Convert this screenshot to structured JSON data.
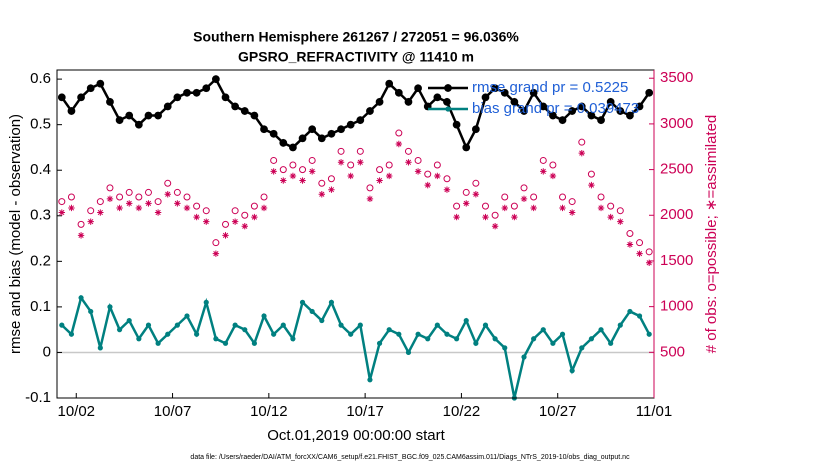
{
  "chart_data": {
    "type": "line",
    "title": "Southern Hemisphere 261267 / 272051 = 96.036%",
    "subtitle": "GPSRO_REFRACTIVITY @ 11410 m",
    "xlabel": "Oct.01,2019 00:00:00 start",
    "ylabel": "rmse and bias (model - observation)",
    "y2label": "# of obs: o=possible; ∗=assimilated",
    "footer": "data file: /Users/raeder/DAI/ATM_forcXX/CAM6_setup/f.e21.FHIST_BGC.f09_025.CAM6assim.011/Diags_NTrS_2019-10/obs_diag_output.nc",
    "x": [
      0.25,
      0.75,
      1.25,
      1.75,
      2.25,
      2.75,
      3.25,
      3.75,
      4.25,
      4.75,
      5.25,
      5.75,
      6.25,
      6.75,
      7.25,
      7.75,
      8.25,
      8.75,
      9.25,
      9.75,
      10.25,
      10.75,
      11.25,
      11.75,
      12.25,
      12.75,
      13.25,
      13.75,
      14.25,
      14.75,
      15.25,
      15.75,
      16.25,
      16.75,
      17.25,
      17.75,
      18.25,
      18.75,
      19.25,
      19.75,
      20.25,
      20.75,
      21.25,
      21.75,
      22.25,
      22.75,
      23.25,
      23.75,
      24.25,
      24.75,
      25.25,
      25.75,
      26.25,
      26.75,
      27.25,
      27.75,
      28.25,
      28.75,
      29.25,
      29.75,
      30.25,
      30.75
    ],
    "xlim": [
      0,
      31
    ],
    "xticks": [
      {
        "value": 1,
        "label": "10/02"
      },
      {
        "value": 6,
        "label": "10/07"
      },
      {
        "value": 11,
        "label": "10/12"
      },
      {
        "value": 16,
        "label": "10/17"
      },
      {
        "value": 21,
        "label": "10/22"
      },
      {
        "value": 26,
        "label": "10/27"
      },
      {
        "value": 31,
        "label": "11/01"
      }
    ],
    "ylim": [
      -0.1,
      0.62
    ],
    "yticks": [
      -0.1,
      0,
      0.1,
      0.2,
      0.3,
      0.4,
      0.5,
      0.6
    ],
    "y2lim": [
      0,
      3590
    ],
    "y2ticks": [
      500,
      1000,
      1500,
      2000,
      2500,
      3000,
      3500
    ],
    "legend": "upper right",
    "series": [
      {
        "name": "rmse grand pr = 0.5225",
        "color": "#000000",
        "marker": "star",
        "line": true,
        "values": [
          0.56,
          0.53,
          0.56,
          0.58,
          0.59,
          0.55,
          0.51,
          0.52,
          0.5,
          0.52,
          0.52,
          0.54,
          0.56,
          0.57,
          0.57,
          0.58,
          0.6,
          0.56,
          0.54,
          0.53,
          0.52,
          0.49,
          0.48,
          0.46,
          0.45,
          0.47,
          0.49,
          0.47,
          0.48,
          0.49,
          0.5,
          0.51,
          0.53,
          0.55,
          0.59,
          0.57,
          0.55,
          0.58,
          0.54,
          0.56,
          0.55,
          0.5,
          0.45,
          0.49,
          0.56,
          0.58,
          0.57,
          0.55,
          0.53,
          0.57,
          0.54,
          0.52,
          0.51,
          0.53,
          0.54,
          0.52,
          0.51,
          0.55,
          0.53,
          0.52,
          0.54,
          0.57
        ]
      },
      {
        "name": "bias grand pr = 0.039473",
        "color": "#008080",
        "marker": "dot",
        "line": true,
        "values": [
          0.06,
          0.04,
          0.12,
          0.09,
          0.01,
          0.1,
          0.05,
          0.07,
          0.03,
          0.06,
          0.02,
          0.04,
          0.06,
          0.08,
          0.04,
          0.11,
          0.03,
          0.02,
          0.06,
          0.05,
          0.02,
          0.08,
          0.04,
          0.06,
          0.03,
          0.11,
          0.09,
          0.07,
          0.11,
          0.06,
          0.04,
          0.06,
          -0.06,
          0.02,
          0.05,
          0.04,
          0.0,
          0.04,
          0.03,
          0.06,
          0.04,
          0.03,
          0.07,
          0.02,
          0.06,
          0.03,
          0.01,
          -0.1,
          -0.01,
          0.03,
          0.05,
          0.02,
          0.04,
          -0.04,
          0.01,
          0.03,
          0.05,
          0.02,
          0.06,
          0.09,
          0.08,
          0.04
        ]
      },
      {
        "color": "#cc0055",
        "marker": "circle",
        "line": false,
        "axis": "y2",
        "values": [
          2150,
          2200,
          1900,
          2050,
          2150,
          2300,
          2200,
          2250,
          2200,
          2250,
          2150,
          2350,
          2250,
          2200,
          2100,
          2050,
          1700,
          1900,
          2050,
          2000,
          2100,
          2200,
          2600,
          2500,
          2550,
          2500,
          2600,
          2350,
          2400,
          2700,
          2550,
          2700,
          2300,
          2500,
          2550,
          2900,
          2700,
          2600,
          2450,
          2550,
          2400,
          2100,
          2250,
          2350,
          2100,
          2000,
          2200,
          2100,
          2300,
          2200,
          2600,
          2550,
          2200,
          2150,
          2800,
          2450,
          2200,
          2100,
          2050,
          1800,
          1700,
          1600
        ]
      },
      {
        "color": "#cc0055",
        "marker": "asterisk",
        "line": false,
        "axis": "y2",
        "values": [
          2030,
          2080,
          1780,
          1930,
          2030,
          2180,
          2080,
          2130,
          2080,
          2130,
          2030,
          2230,
          2130,
          2080,
          1980,
          1930,
          1580,
          1780,
          1930,
          1880,
          1980,
          2080,
          2480,
          2380,
          2430,
          2380,
          2480,
          2230,
          2280,
          2580,
          2430,
          2580,
          2180,
          2380,
          2430,
          2780,
          2580,
          2480,
          2330,
          2430,
          2280,
          1980,
          2130,
          2230,
          1980,
          1880,
          2080,
          1980,
          2180,
          2080,
          2480,
          2430,
          2080,
          2030,
          2680,
          2330,
          2080,
          1980,
          1930,
          1680,
          1580,
          1480
        ]
      }
    ]
  }
}
